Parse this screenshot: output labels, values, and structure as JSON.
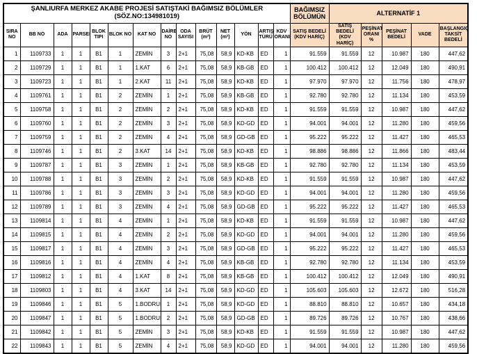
{
  "accent_color": "#FADCC0",
  "border_color": "#000000",
  "table": {
    "title": "ŞANLIURFA MERKEZ AKABE PROJESİ SATIŞTAKİ BAĞIMSIZ BÖLÜMLER (SÖZ.NO:134981019)",
    "group_headers": {
      "bagimsiz_bolumun": "BAĞIMSIZ BÖLÜMÜN",
      "alternatif_1": "ALTERNATİF 1"
    },
    "columns": {
      "sira_no": "SIRA NO",
      "bb_no": "BB NO",
      "ada": "ADA",
      "parsel": "PARSEL",
      "blok_tipi": "BLOK TIPI",
      "blok_no": "BLOK NO",
      "kat_no": "KAT NO",
      "daire_no": "DAİRE NO",
      "oda_sayisi": "ODA SAYISI",
      "brut": "BRÜT (m²)",
      "net": "NET (m²)",
      "yon": "YÖN",
      "artis_turu": "ARTIŞ TÜRÜ",
      "kdv_orani": "KDV ORANI",
      "satis_bedeli_bagimsiz": "SATIŞ BEDELİ (KDV HARİÇ)",
      "satis_bedeli_alt1": "SATIŞ BEDELİ (KDV HARİÇ)",
      "pesinat_orani": "PEŞİNAT ORANI %",
      "pesinat_bedeli": "PEŞİNAT BEDELİ",
      "vade": "VADE",
      "baslangic_taksit": "BAŞLANGIÇ TAKSİT BEDELİ"
    },
    "col_keys": [
      "sira-no",
      "bb-no",
      "ada",
      "parsel",
      "blok-tipi",
      "blok-no",
      "kat-no",
      "daire-no",
      "oda-sayisi",
      "brut",
      "net",
      "yon",
      "artis-turu",
      "kdv-orani",
      "satis-bedeli-bagimsiz",
      "satis-bedeli-alt1",
      "pesinat-orani",
      "pesinat-bedeli",
      "vade",
      "baslangic-taksit"
    ],
    "col_align": [
      "right",
      "right",
      "center",
      "center",
      "center",
      "center",
      "left",
      "center",
      "left",
      "right",
      "right",
      "left",
      "left",
      "right",
      "right",
      "right",
      "center",
      "right",
      "center",
      "right"
    ],
    "rows": [
      [
        "1",
        "1109733",
        "1",
        "1",
        "B1",
        "1",
        "ZEMİN",
        "3",
        "2+1",
        "75,08",
        "58,9",
        "KD-KB",
        "ED",
        "1",
        "91.559",
        "91.559",
        "12",
        "10.987",
        "180",
        "447,62"
      ],
      [
        "2",
        "1109729",
        "1",
        "1",
        "B1",
        "1",
        "1.KAT",
        "6",
        "2+1",
        "75,08",
        "58,9",
        "KB-GB",
        "ED",
        "1",
        "100.412",
        "100.412",
        "12",
        "12.049",
        "180",
        "490,91"
      ],
      [
        "3",
        "1109723",
        "1",
        "1",
        "B1",
        "1",
        "2.KAT",
        "11",
        "2+1",
        "75,08",
        "58,9",
        "KD-KB",
        "ED",
        "1",
        "97.970",
        "97.970",
        "12",
        "11.756",
        "180",
        "478,97"
      ],
      [
        "4",
        "1109761",
        "1",
        "1",
        "B1",
        "2",
        "ZEMİN",
        "1",
        "2+1",
        "75,08",
        "58,9",
        "KB-GB",
        "ED",
        "1",
        "92.780",
        "92.780",
        "12",
        "11.134",
        "180",
        "453,59"
      ],
      [
        "5",
        "1109758",
        "1",
        "1",
        "B1",
        "2",
        "ZEMİN",
        "2",
        "2+1",
        "75,08",
        "58,9",
        "KD-KB",
        "ED",
        "1",
        "91.559",
        "91.559",
        "12",
        "10.987",
        "180",
        "447,62"
      ],
      [
        "6",
        "1109760",
        "1",
        "1",
        "B1",
        "2",
        "ZEMİN",
        "3",
        "2+1",
        "75,08",
        "58,9",
        "KD-GD",
        "ED",
        "1",
        "94.001",
        "94.001",
        "12",
        "11.280",
        "180",
        "459,56"
      ],
      [
        "7",
        "1109759",
        "1",
        "1",
        "B1",
        "2",
        "ZEMİN",
        "4",
        "2+1",
        "75,08",
        "58,9",
        "GD-GB",
        "ED",
        "1",
        "95.222",
        "95.222",
        "12",
        "11.427",
        "180",
        "465,53"
      ],
      [
        "8",
        "1109746",
        "1",
        "1",
        "B1",
        "2",
        "3.KAT",
        "14",
        "2+1",
        "75,08",
        "58,9",
        "KD-KB",
        "ED",
        "1",
        "98.886",
        "98.886",
        "12",
        "11.866",
        "180",
        "483,44"
      ],
      [
        "9",
        "1109787",
        "1",
        "1",
        "B1",
        "3",
        "ZEMİN",
        "1",
        "2+1",
        "75,08",
        "58,9",
        "KB-GB",
        "ED",
        "1",
        "92.780",
        "92.780",
        "12",
        "11.134",
        "180",
        "453,59"
      ],
      [
        "10",
        "1109788",
        "1",
        "1",
        "B1",
        "3",
        "ZEMİN",
        "2",
        "2+1",
        "75,08",
        "58,9",
        "KD-KB",
        "ED",
        "1",
        "91.559",
        "91.559",
        "12",
        "10.987",
        "180",
        "447,62"
      ],
      [
        "11",
        "1109786",
        "1",
        "1",
        "B1",
        "3",
        "ZEMİN",
        "3",
        "2+1",
        "75,08",
        "58,9",
        "KD-GD",
        "ED",
        "1",
        "94.001",
        "94.001",
        "12",
        "11.280",
        "180",
        "459,56"
      ],
      [
        "12",
        "1109789",
        "1",
        "1",
        "B1",
        "3",
        "ZEMİN",
        "4",
        "2+1",
        "75,08",
        "58,9",
        "GD-GB",
        "ED",
        "1",
        "95.222",
        "95.222",
        "12",
        "11.427",
        "180",
        "465,53"
      ],
      [
        "13",
        "1109814",
        "1",
        "1",
        "B1",
        "4",
        "ZEMİN",
        "1",
        "2+1",
        "75,08",
        "58,9",
        "KD-KB",
        "ED",
        "1",
        "91.559",
        "91.559",
        "12",
        "10.987",
        "180",
        "447,62"
      ],
      [
        "14",
        "1109815",
        "1",
        "1",
        "B1",
        "4",
        "ZEMİN",
        "2",
        "2+1",
        "75,08",
        "58,9",
        "KD-GD",
        "ED",
        "1",
        "94.001",
        "94.001",
        "12",
        "11.280",
        "180",
        "459,56"
      ],
      [
        "15",
        "1109817",
        "1",
        "1",
        "B1",
        "4",
        "ZEMİN",
        "3",
        "2+1",
        "75,08",
        "58,9",
        "GD-GB",
        "ED",
        "1",
        "95.222",
        "95.222",
        "12",
        "11.427",
        "180",
        "465,53"
      ],
      [
        "16",
        "1109816",
        "1",
        "1",
        "B1",
        "4",
        "ZEMİN",
        "4",
        "2+1",
        "75,08",
        "58,9",
        "KB-GB",
        "ED",
        "1",
        "92.780",
        "92.780",
        "12",
        "11.134",
        "180",
        "453,59"
      ],
      [
        "17",
        "1109812",
        "1",
        "1",
        "B1",
        "4",
        "1.KAT",
        "8",
        "2+1",
        "75,08",
        "58,9",
        "KB-GB",
        "ED",
        "1",
        "100.412",
        "100.412",
        "12",
        "12.049",
        "180",
        "490,91"
      ],
      [
        "18",
        "1109803",
        "1",
        "1",
        "B1",
        "4",
        "3.KAT",
        "14",
        "2+1",
        "75,08",
        "58,9",
        "KD-GD",
        "ED",
        "1",
        "105.603",
        "105.603",
        "12",
        "12.672",
        "180",
        "516,28"
      ],
      [
        "19",
        "1109846",
        "1",
        "1",
        "B1",
        "5",
        "1.BODRUM",
        "1",
        "2+1",
        "75,08",
        "58,9",
        "KD-GD",
        "ED",
        "1",
        "88.810",
        "88.810",
        "12",
        "10.657",
        "180",
        "434,18"
      ],
      [
        "20",
        "1109847",
        "1",
        "1",
        "B1",
        "5",
        "1.BODRUM",
        "2",
        "2+1",
        "75,08",
        "58,9",
        "GD-GB",
        "ED",
        "1",
        "89.726",
        "89.726",
        "12",
        "10.767",
        "180",
        "438,66"
      ],
      [
        "21",
        "1109842",
        "1",
        "1",
        "B1",
        "5",
        "ZEMİN",
        "3",
        "2+1",
        "75,08",
        "58,9",
        "KD-KB",
        "ED",
        "1",
        "91.559",
        "91.559",
        "12",
        "10.987",
        "180",
        "447,62"
      ],
      [
        "22",
        "1109843",
        "1",
        "1",
        "B1",
        "5",
        "ZEMİN",
        "4",
        "2+1",
        "75,08",
        "58,9",
        "KD-GD",
        "ED",
        "1",
        "94.001",
        "94.001",
        "12",
        "11.280",
        "180",
        "459,56"
      ]
    ]
  }
}
